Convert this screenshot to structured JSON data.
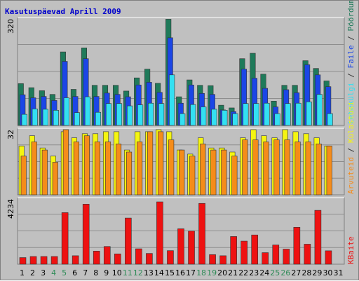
{
  "title": "Kasutuspäevad Aprill 2009",
  "colors": {
    "title": "#0000cc",
    "plot_bg": "#c0c0c0",
    "grid": "#8e8e8e",
    "weekend_label": "#2e8b57",
    "hits": "#1f7a5a",
    "files": "#1b46e6",
    "pages": "#33e0f2",
    "visits": "#f5f511",
    "sites": "#f58c1a",
    "kbytes": "#ee1111",
    "bar_outline": "#333333"
  },
  "weekend_days": [
    4,
    5,
    11,
    12,
    18,
    19,
    25,
    26
  ],
  "right_labels": {
    "hits": "Pöördumisi",
    "sep1": " / ",
    "files": "Faile",
    "sep2": " / ",
    "pages": "Lehekülgi",
    "visits": "Külastusi",
    "sep3": " / ",
    "sites": "Arvuteid",
    "kbytes": "KBaite"
  },
  "chart_data": [
    {
      "type": "bar",
      "panel": "hits-files-pages",
      "ymax_label": "320",
      "ylim": [
        0,
        320
      ],
      "categories": [
        "1",
        "2",
        "3",
        "4",
        "5",
        "6",
        "7",
        "8",
        "9",
        "10",
        "11",
        "12",
        "13",
        "14",
        "15",
        "16",
        "17",
        "18",
        "19",
        "20",
        "21",
        "22",
        "23",
        "24",
        "25",
        "26",
        "27",
        "28",
        "29",
        "30",
        "31"
      ],
      "series": [
        {
          "name": "Pöördumisi",
          "values": [
            124,
            112,
            103,
            92,
            218,
            107,
            230,
            119,
            119,
            119,
            102,
            141,
            167,
            125,
            315,
            85,
            135,
            119,
            118,
            60,
            52,
            198,
            214,
            152,
            72,
            119,
            119,
            192,
            169,
            132,
            0
          ]
        },
        {
          "name": "Faile",
          "values": [
            91,
            82,
            86,
            74,
            190,
            86,
            198,
            86,
            96,
            92,
            85,
            120,
            128,
            98,
            260,
            66,
            120,
            95,
            92,
            46,
            41,
            167,
            140,
            110,
            55,
            106,
            97,
            180,
            150,
            115,
            0
          ]
        },
        {
          "name": "Lehekülgi",
          "values": [
            33,
            49,
            48,
            45,
            82,
            38,
            85,
            39,
            65,
            65,
            58,
            61,
            66,
            65,
            150,
            35,
            62,
            55,
            48,
            45,
            35,
            65,
            65,
            66,
            35,
            65,
            66,
            70,
            92,
            35,
            0
          ]
        }
      ]
    },
    {
      "type": "bar",
      "panel": "visits-sites",
      "ymax_label": "32",
      "ylim": [
        0,
        32
      ],
      "categories": [
        "1",
        "2",
        "3",
        "4",
        "5",
        "6",
        "7",
        "8",
        "9",
        "10",
        "11",
        "12",
        "13",
        "14",
        "15",
        "16",
        "17",
        "18",
        "19",
        "20",
        "21",
        "22",
        "23",
        "24",
        "25",
        "26",
        "27",
        "28",
        "29",
        "30",
        "31"
      ],
      "series": [
        {
          "name": "Külastusi",
          "values": [
            24,
            29,
            23,
            19,
            31,
            28,
            30,
            30,
            31,
            31,
            22,
            31,
            31,
            32,
            31,
            22,
            20,
            28,
            23,
            23,
            21,
            28,
            32,
            29,
            28,
            32,
            31,
            30,
            28,
            24,
            0
          ]
        },
        {
          "name": "Arvuteid",
          "values": [
            19,
            26,
            22,
            16,
            32,
            26,
            29,
            26,
            26,
            25,
            21,
            26,
            31,
            31,
            27,
            22,
            19,
            25,
            22,
            22,
            19,
            27,
            27,
            26,
            27,
            27,
            26,
            26,
            25,
            24,
            0
          ]
        }
      ]
    },
    {
      "type": "bar",
      "panel": "kbytes",
      "ymax_label": "4234",
      "ylim": [
        0,
        4234
      ],
      "categories": [
        "1",
        "2",
        "3",
        "4",
        "5",
        "6",
        "7",
        "8",
        "9",
        "10",
        "11",
        "12",
        "13",
        "14",
        "15",
        "16",
        "17",
        "18",
        "19",
        "20",
        "21",
        "22",
        "23",
        "24",
        "25",
        "26",
        "27",
        "28",
        "29",
        "30",
        "31"
      ],
      "series": [
        {
          "name": "KBaite",
          "values": [
            430,
            500,
            500,
            500,
            3350,
            550,
            3900,
            850,
            1150,
            670,
            3000,
            1000,
            700,
            4050,
            880,
            2300,
            2150,
            3950,
            620,
            550,
            1800,
            1500,
            1900,
            750,
            1250,
            980,
            2400,
            1300,
            3500,
            870,
            0
          ]
        }
      ]
    }
  ]
}
